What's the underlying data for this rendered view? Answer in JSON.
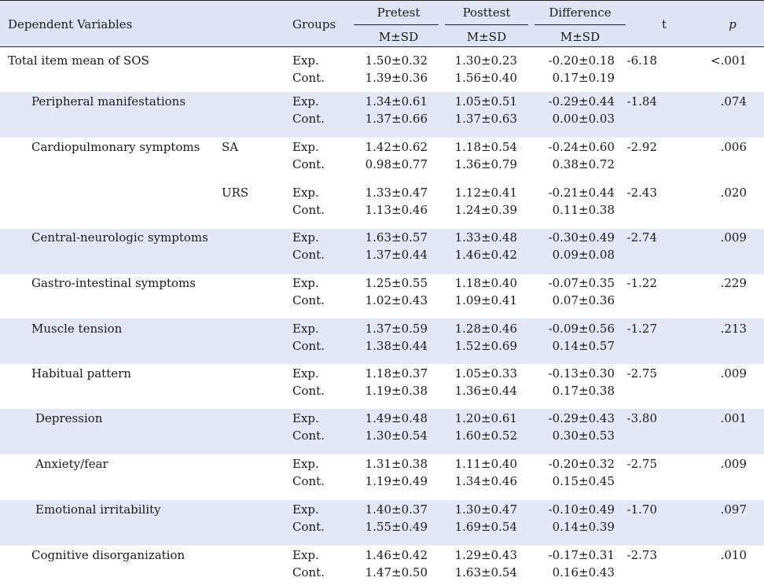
{
  "header": {
    "dependent_variables": "Dependent Variables",
    "groups": "Groups",
    "pretest": "Pretest",
    "posttest": "Posttest",
    "difference": "Difference",
    "msd_pre": "M±SD",
    "msd_post": "M±SD",
    "msd_diff": "M±SD",
    "t": "t",
    "p": "p"
  },
  "rows": [
    {
      "label": "Total item mean of SOS",
      "sub": "",
      "g1": "Exp.",
      "g2": "Cont.",
      "pre1": "1.50±0.32",
      "pre2": "1.39±0.36",
      "post1": "1.30±0.23",
      "post2": "1.56±0.40",
      "diff1": "-0.20±0.18",
      "diff2": "0.17±0.19",
      "t": "-6.18",
      "p": "<.001"
    },
    {
      "label": "Peripheral manifestations",
      "sub": "",
      "g1": "Exp.",
      "g2": "Cont.",
      "pre1": "1.34±0.61",
      "pre2": "1.37±0.66",
      "post1": "1.05±0.51",
      "post2": "1.37±0.63",
      "diff1": "-0.29±0.44",
      "diff2": "0.00±0.03",
      "t": "-1.84",
      "p": ".074"
    },
    {
      "label": "Cardiopulmonary symptoms",
      "sub": "SA",
      "g1": "Exp.",
      "g2": "Cont.",
      "pre1": "1.42±0.62",
      "pre2": "0.98±0.77",
      "post1": "1.18±0.54",
      "post2": "1.36±0.79",
      "diff1": "-0.24±0.60",
      "diff2": "0.38±0.72",
      "t": "-2.92",
      "p": ".006"
    },
    {
      "label": "",
      "sub": "URS",
      "g1": "Exp.",
      "g2": "Cont.",
      "pre1": "1.33±0.47",
      "pre2": "1.13±0.46",
      "post1": "1.12±0.41",
      "post2": "1.24±0.39",
      "diff1": "-0.21±0.44",
      "diff2": "0.11±0.38",
      "t": "-2.43",
      "p": ".020"
    },
    {
      "label": "Central-neurologic symptoms",
      "sub": "",
      "g1": "Exp.",
      "g2": "Cont.",
      "pre1": "1.63±0.57",
      "pre2": "1.37±0.44",
      "post1": "1.33±0.48",
      "post2": "1.46±0.42",
      "diff1": "-0.30±0.49",
      "diff2": "0.09±0.08",
      "t": "-2.74",
      "p": ".009"
    },
    {
      "label": "Gastro-intestinal symptoms",
      "sub": "",
      "g1": "Exp.",
      "g2": "Cont.",
      "pre1": "1.25±0.55",
      "pre2": "1.02±0.43",
      "post1": "1.18±0.40",
      "post2": "1.09±0.41",
      "diff1": "-0.07±0.35",
      "diff2": "0.07±0.36",
      "t": "-1.22",
      "p": ".229"
    },
    {
      "label": "Muscle tension",
      "sub": "",
      "g1": "Exp.",
      "g2": "Cont.",
      "pre1": "1.37±0.59",
      "pre2": "1.38±0.44",
      "post1": "1.28±0.46",
      "post2": "1.52±0.69",
      "diff1": "-0.09±0.56",
      "diff2": "0.14±0.57",
      "t": "-1.27",
      "p": ".213"
    },
    {
      "label": "Habitual pattern",
      "sub": "",
      "g1": "Exp.",
      "g2": "Cont.",
      "pre1": "1.18±0.37",
      "pre2": "1.19±0.38",
      "post1": "1.05±0.33",
      "post2": "1.36±0.44",
      "diff1": "-0.13±0.30",
      "diff2": "0.17±0.38",
      "t": "-2.75",
      "p": ".009"
    },
    {
      "label": "Depression",
      "sub": "",
      "g1": "Exp.",
      "g2": "Cont.",
      "pre1": "1.49±0.48",
      "pre2": "1.30±0.54",
      "post1": "1.20±0.61",
      "post2": "1.60±0.52",
      "diff1": "-0.29±0.43",
      "diff2": "0.30±0.53",
      "t": "-3.80",
      "p": ".001"
    },
    {
      "label": "Anxiety/fear",
      "sub": "",
      "g1": "Exp.",
      "g2": "Cont.",
      "pre1": "1.31±0.38",
      "pre2": "1.19±0.49",
      "post1": "1.11±0.40",
      "post2": "1.34±0.46",
      "diff1": "-0.20±0.32",
      "diff2": "0.15±0.45",
      "t": "-2.75",
      "p": ".009"
    },
    {
      "label": "Emotional irritability",
      "sub": "",
      "g1": "Exp.",
      "g2": "Cont.",
      "pre1": "1.40±0.37",
      "pre2": "1.55±0.49",
      "post1": "1.30±0.47",
      "post2": "1.69±0.54",
      "diff1": "-0.10±0.49",
      "diff2": "0.14±0.39",
      "t": "-1.70",
      "p": ".097"
    },
    {
      "label": "Cognitive disorganization",
      "sub": "",
      "g1": "Exp.",
      "g2": "Cont.",
      "pre1": "1.46±0.42",
      "pre2": "1.47±0.50",
      "post1": "1.29±0.43",
      "post2": "1.63±0.54",
      "diff1": "-0.17±0.31",
      "diff2": "0.16±0.43",
      "t": "-2.73",
      "p": ".010"
    }
  ]
}
